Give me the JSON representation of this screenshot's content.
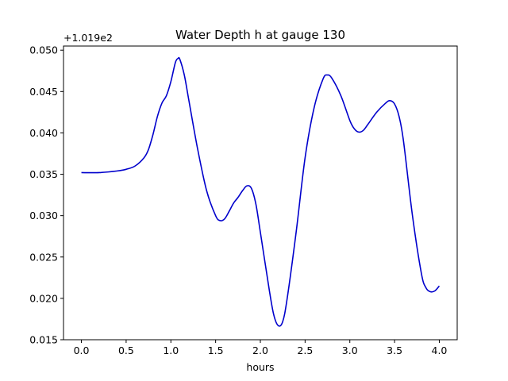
{
  "chart_data": {
    "type": "line",
    "title": "Water Depth h at gauge 130",
    "xlabel": "hours",
    "ylabel": "",
    "y_offset_label": "+1.019e2",
    "xlim": [
      -0.2,
      4.2
    ],
    "ylim": [
      0.015,
      0.0505
    ],
    "xticks": [
      0.0,
      0.5,
      1.0,
      1.5,
      2.0,
      2.5,
      3.0,
      3.5,
      4.0
    ],
    "xtick_labels": [
      "0.0",
      "0.5",
      "1.0",
      "1.5",
      "2.0",
      "2.5",
      "3.0",
      "3.5",
      "4.0"
    ],
    "yticks": [
      0.015,
      0.02,
      0.025,
      0.03,
      0.035,
      0.04,
      0.045,
      0.05
    ],
    "ytick_labels": [
      "0.015",
      "0.020",
      "0.025",
      "0.030",
      "0.035",
      "0.040",
      "0.045",
      "0.050"
    ],
    "grid": false,
    "series": [
      {
        "color": "#0000cc",
        "x": [
          0.0,
          0.2,
          0.4,
          0.5,
          0.6,
          0.7,
          0.75,
          0.8,
          0.85,
          0.9,
          0.95,
          1.0,
          1.05,
          1.08,
          1.1,
          1.15,
          1.2,
          1.3,
          1.4,
          1.5,
          1.55,
          1.6,
          1.65,
          1.7,
          1.75,
          1.8,
          1.85,
          1.9,
          1.95,
          2.0,
          2.1,
          2.15,
          2.2,
          2.25,
          2.3,
          2.4,
          2.5,
          2.6,
          2.7,
          2.75,
          2.8,
          2.9,
          3.0,
          3.05,
          3.1,
          3.15,
          3.2,
          3.3,
          3.4,
          3.45,
          3.5,
          3.55,
          3.6,
          3.7,
          3.8,
          3.85,
          3.9,
          3.95,
          4.0
        ],
        "y": [
          0.0352,
          0.0352,
          0.0354,
          0.0356,
          0.036,
          0.037,
          0.038,
          0.0398,
          0.042,
          0.0436,
          0.0445,
          0.0462,
          0.0485,
          0.049,
          0.0489,
          0.047,
          0.044,
          0.038,
          0.033,
          0.03,
          0.0294,
          0.0296,
          0.0305,
          0.0315,
          0.0322,
          0.033,
          0.0336,
          0.0333,
          0.0314,
          0.028,
          0.021,
          0.018,
          0.0167,
          0.0172,
          0.02,
          0.028,
          0.037,
          0.043,
          0.0465,
          0.047,
          0.0466,
          0.0445,
          0.0415,
          0.0405,
          0.0401,
          0.0403,
          0.041,
          0.0425,
          0.0436,
          0.0439,
          0.0435,
          0.042,
          0.039,
          0.03,
          0.023,
          0.0213,
          0.0208,
          0.0209,
          0.0215
        ]
      }
    ]
  }
}
